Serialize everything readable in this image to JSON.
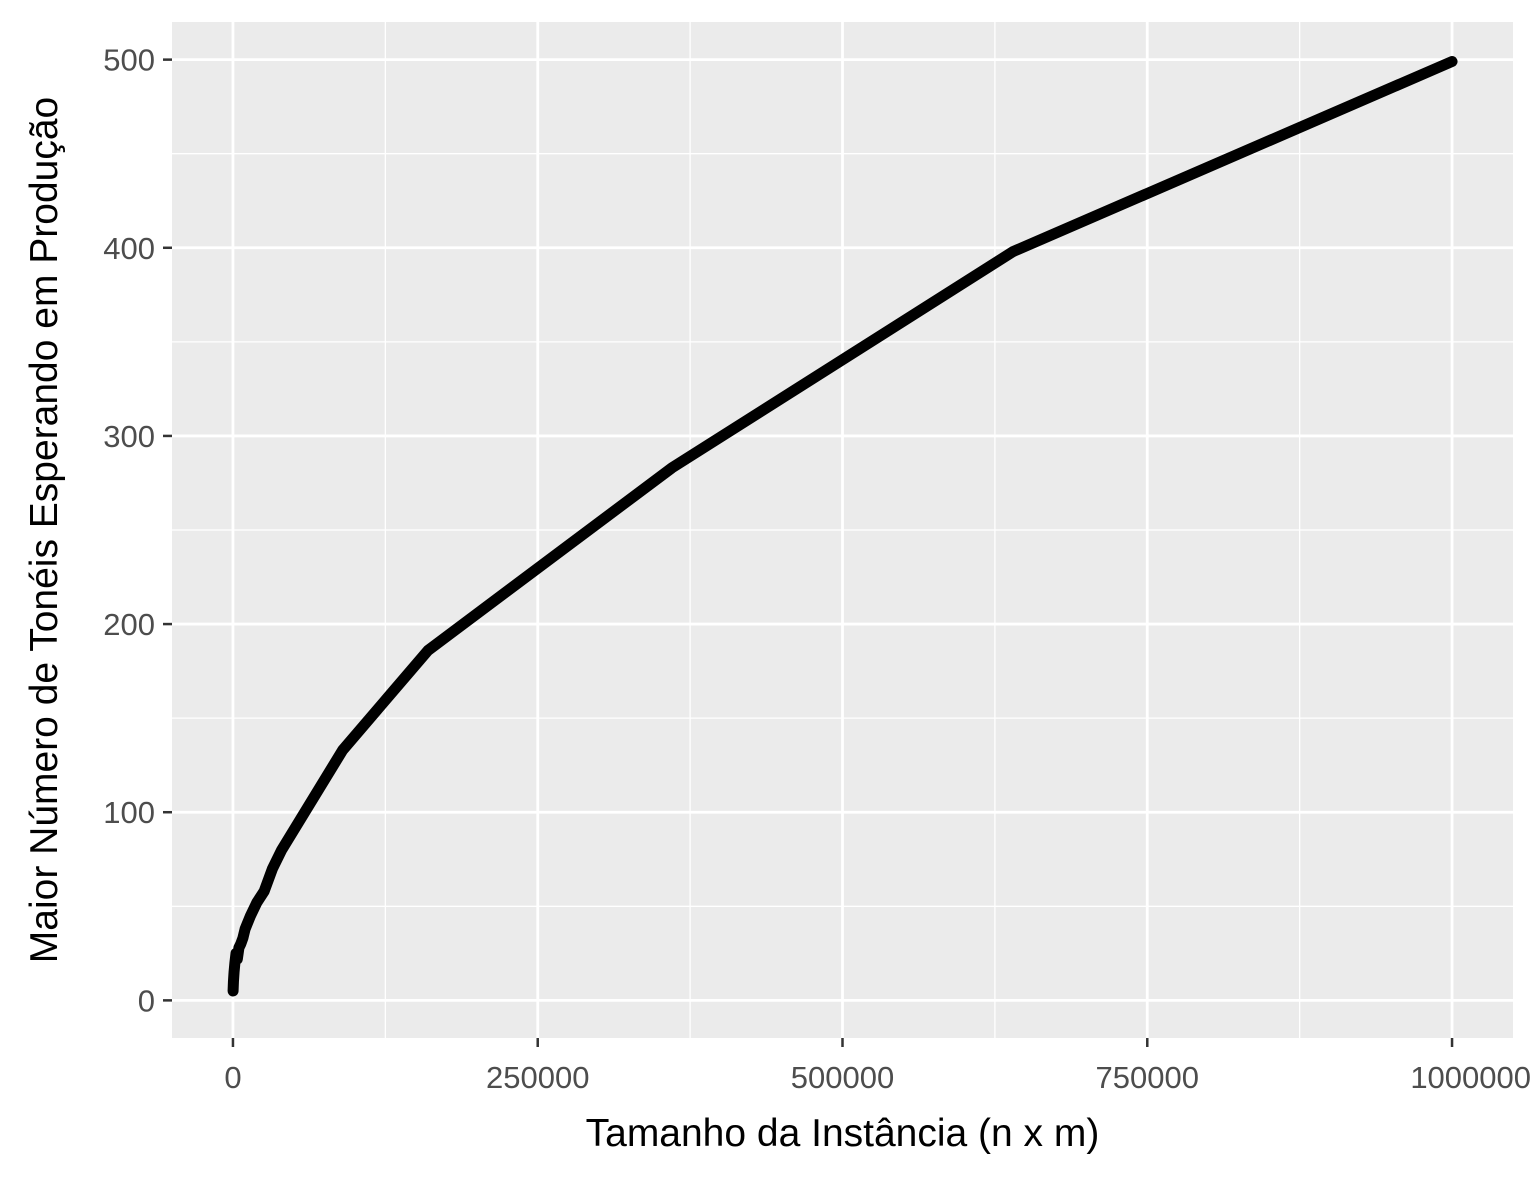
{
  "chart_data": {
    "type": "line",
    "title": "",
    "xlabel": "Tamanho da Instância (n x m)",
    "ylabel": "Maior Número de Tonéis Esperando em Produção",
    "xlim": [
      -50000,
      1050000
    ],
    "ylim": [
      -20,
      520
    ],
    "x_ticks": [
      0,
      250000,
      500000,
      750000,
      1000000
    ],
    "x_tick_labels": [
      "0",
      "250000",
      "500000",
      "750000",
      "1000000"
    ],
    "y_ticks": [
      0,
      100,
      200,
      300,
      400,
      500
    ],
    "y_tick_labels": [
      "0",
      "100",
      "200",
      "300",
      "400",
      "500"
    ],
    "grid": true,
    "legend": "none",
    "colors": {
      "panel_background": "#ebebeb",
      "grid_major": "#ffffff",
      "grid_minor": "#ffffff",
      "line": "#000000",
      "tick_label": "#4d4d4d",
      "axis_title": "#000000"
    },
    "series": [
      {
        "x": [
          100,
          400,
          900,
          1600,
          2500,
          3600,
          4900,
          6400,
          8100,
          10000,
          14400,
          19600,
          25600,
          32400,
          40000,
          90000,
          160000,
          360000,
          640000,
          1000000
        ],
        "y": [
          5,
          10,
          15,
          20,
          25,
          22,
          28,
          30,
          33,
          38,
          45,
          52,
          58,
          70,
          80,
          133,
          186,
          283,
          398,
          499
        ]
      }
    ]
  }
}
